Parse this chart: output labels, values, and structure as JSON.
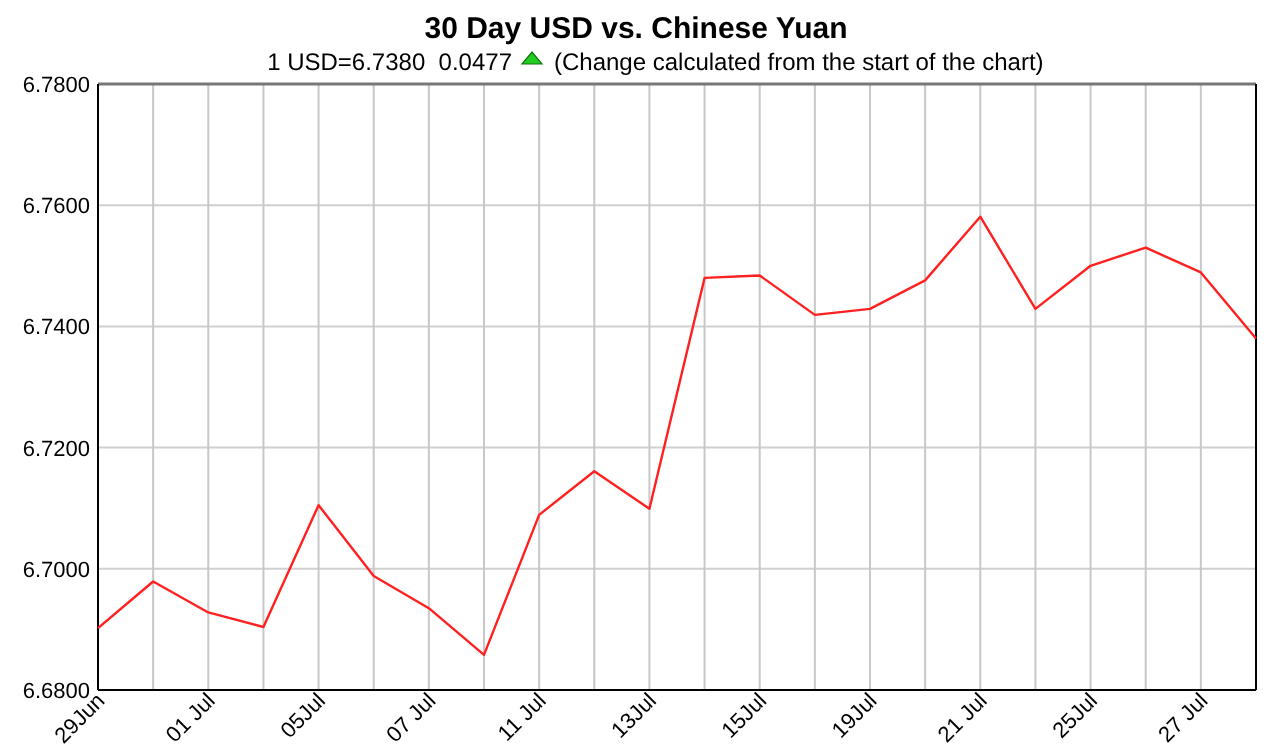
{
  "chart_data": {
    "type": "line",
    "title": "30 Day USD vs. Chinese Yuan",
    "subtitle": "1 USD=6.7380  0.0477",
    "annotations": [
      "(Change calculated from the start of the chart)"
    ],
    "categories": [
      "29Jun",
      null,
      "01 Jul",
      null,
      "05Jul",
      null,
      "07 Jul",
      null,
      "11 Jul",
      null,
      "13Jul",
      null,
      "15Jul",
      null,
      "19Jul",
      null,
      "21 Jul",
      null,
      "25Jul",
      null,
      "27 Jul",
      null
    ],
    "series": [
      {
        "color": "#ff2020",
        "values": [
          6.6902,
          6.6979,
          6.6928,
          6.6904,
          6.7105,
          6.6988,
          6.6935,
          6.6858,
          6.7089,
          6.7161,
          6.7099,
          6.748,
          6.7484,
          6.7419,
          6.7429,
          6.7476,
          6.7581,
          6.7429,
          6.75,
          6.753,
          6.7489,
          6.738
        ]
      }
    ],
    "ylim": [
      6.68,
      6.78
    ],
    "yticks": [
      {
        "value": 6.68,
        "label": "6.6800"
      },
      {
        "value": 6.7,
        "label": "6.7000"
      },
      {
        "value": 6.72,
        "label": "6.7200"
      },
      {
        "value": 6.74,
        "label": "6.7400"
      },
      {
        "value": 6.76,
        "label": "6.7600"
      },
      {
        "value": 6.78,
        "label": "6.7800"
      }
    ],
    "grid": true,
    "marker": "none",
    "line_style": "solid"
  }
}
